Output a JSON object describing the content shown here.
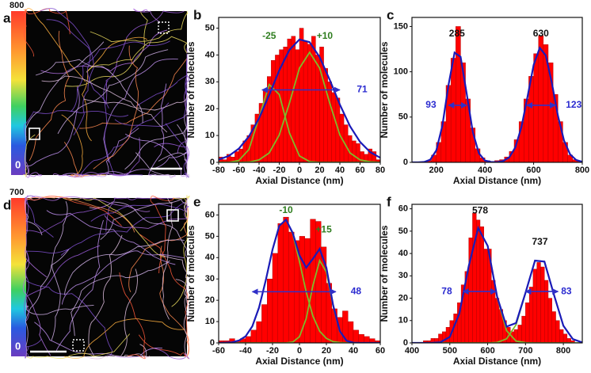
{
  "images": [
    {
      "label": "a",
      "colorbar_max": 800,
      "colorbar_min": 0
    },
    {
      "label": "d",
      "colorbar_max": 700,
      "colorbar_min": 0
    }
  ],
  "chart_data": [
    {
      "type": "histogram",
      "label": "b",
      "x_label": "Axial Distance (nm)",
      "y_label": "Number of molecules",
      "color": "#ff0000",
      "bins": [
        -80,
        -76,
        -72,
        -68,
        -64,
        -60,
        -56,
        -52,
        -48,
        -44,
        -40,
        -36,
        -32,
        -28,
        -24,
        -20,
        -16,
        -12,
        -8,
        -4,
        0,
        4,
        8,
        12,
        16,
        20,
        24,
        28,
        32,
        36,
        40,
        44,
        48,
        52,
        56,
        60,
        64,
        68,
        72,
        76,
        80
      ],
      "values": [
        2,
        1,
        3,
        2,
        4,
        5,
        8,
        10,
        14,
        18,
        22,
        27,
        32,
        38,
        40,
        42,
        43,
        46,
        47,
        42,
        50,
        45,
        44,
        47,
        40,
        43,
        35,
        30,
        26,
        24,
        18,
        14,
        10,
        8,
        7,
        4,
        3,
        5,
        4,
        1
      ],
      "fits": [
        {
          "color": "#1a1ab8",
          "x": [
            -80,
            -70,
            -60,
            -50,
            -40,
            -30,
            -20,
            -10,
            0,
            10,
            20,
            30,
            40,
            50,
            60,
            70,
            80
          ],
          "values": [
            1,
            2.4,
            5.1,
            9.7,
            16.4,
            25.1,
            34.3,
            41.9,
            45.8,
            44.8,
            39.2,
            30.7,
            21.5,
            13.5,
            7.6,
            3.8,
            1.7
          ]
        },
        {
          "color": "#7dbd2a",
          "x": [
            -80,
            -70,
            -60,
            -50,
            -40,
            -30,
            -20,
            -10,
            0,
            10,
            20,
            30,
            40,
            50,
            60,
            70,
            80
          ],
          "values": [
            0,
            0,
            0.7,
            4.8,
            16.7,
            29,
            25.3,
            11,
            2.4,
            0.3,
            0,
            0,
            0,
            0,
            0,
            0,
            0
          ]
        },
        {
          "color": "#7dbd2a",
          "x": [
            -80,
            -70,
            -60,
            -50,
            -40,
            -30,
            -20,
            -10,
            0,
            10,
            20,
            30,
            40,
            50,
            60,
            70,
            80
          ],
          "values": [
            0,
            0,
            0,
            0.1,
            0.9,
            3.5,
            10.2,
            22,
            35.1,
            41,
            35.1,
            22,
            10.2,
            3.5,
            0.9,
            0.2,
            0
          ]
        }
      ],
      "annotations": [
        {
          "text": "-25",
          "color": "#2e7d1e"
        },
        {
          "text": "+10",
          "color": "#2e7d1e"
        },
        {
          "text": "71",
          "color": "#2b2bd0"
        }
      ],
      "xlim": [
        -80,
        80
      ],
      "xticks": [
        -80,
        -60,
        -40,
        -20,
        0,
        20,
        40,
        60,
        80
      ],
      "ylim": [
        0,
        54
      ],
      "yticks": [
        0,
        10,
        20,
        30,
        40,
        50
      ]
    },
    {
      "type": "histogram",
      "label": "c",
      "x_label": "Axial Distance (nm)",
      "y_label": "Number of molecules",
      "color": "#ff0000",
      "bins": [
        100,
        120,
        140,
        160,
        180,
        200,
        220,
        240,
        260,
        280,
        300,
        320,
        340,
        360,
        380,
        400,
        420,
        440,
        460,
        480,
        500,
        520,
        540,
        560,
        580,
        600,
        620,
        640,
        660,
        680,
        700,
        720,
        740,
        760,
        780,
        800
      ],
      "values": [
        0,
        0,
        0,
        2,
        8,
        22,
        45,
        85,
        115,
        150,
        110,
        70,
        38,
        15,
        5,
        2,
        1,
        2,
        3,
        6,
        12,
        25,
        45,
        70,
        95,
        120,
        140,
        130,
        110,
        75,
        45,
        22,
        8,
        3,
        1
      ],
      "fits": [
        {
          "color": "#1a1ab8",
          "x": [
            100,
            125,
            150,
            175,
            200,
            225,
            250,
            275,
            300,
            325,
            350,
            375,
            400,
            425,
            450,
            475,
            500,
            525,
            550,
            575,
            600,
            625,
            650,
            675,
            700,
            725,
            750,
            775,
            800
          ],
          "values": [
            0,
            0,
            0.4,
            2.9,
            13.1,
            40.6,
            85.2,
            121.2,
            116.5,
            75.8,
            33.4,
            10,
            2,
            0.4,
            0.3,
            1.5,
            5.6,
            16.5,
            39,
            72.6,
            107.5,
            126.4,
            118,
            87.5,
            51.3,
            24,
            8.9,
            2.6,
            0.6
          ]
        }
      ],
      "annotations": [
        {
          "text": "285",
          "color": "#111111"
        },
        {
          "text": "630",
          "color": "#111111"
        },
        {
          "text": "93",
          "color": "#2b2bd0"
        },
        {
          "text": "123",
          "color": "#2b2bd0"
        }
      ],
      "xlim": [
        100,
        800
      ],
      "xticks": [
        200,
        400,
        600,
        800
      ],
      "ylim": [
        0,
        160
      ],
      "yticks": [
        0,
        50,
        100,
        150
      ]
    },
    {
      "type": "histogram",
      "label": "e",
      "x_label": "Axial Distance (nm)",
      "y_label": "Number of molecules",
      "color": "#ff0000",
      "bins": [
        -60,
        -56,
        -52,
        -48,
        -44,
        -40,
        -36,
        -32,
        -28,
        -24,
        -20,
        -16,
        -12,
        -8,
        -4,
        0,
        4,
        8,
        12,
        16,
        20,
        24,
        28,
        32,
        36,
        40,
        44,
        48,
        52,
        56,
        60
      ],
      "values": [
        1,
        1,
        2,
        1,
        2,
        3,
        6,
        10,
        18,
        30,
        42,
        56,
        59,
        52,
        48,
        50,
        49,
        58,
        57,
        45,
        28,
        16,
        12,
        15,
        10,
        6,
        4,
        3,
        2,
        1
      ],
      "fits": [
        {
          "color": "#1a1ab8",
          "x": [
            -60,
            -55,
            -50,
            -45,
            -40,
            -35,
            -30,
            -25,
            -20,
            -15,
            -10,
            -5,
            0,
            5,
            10,
            15,
            20,
            25,
            30,
            35,
            40,
            45,
            50,
            55,
            60
          ],
          "values": [
            0,
            0.1,
            0.3,
            1.1,
            3.1,
            7.8,
            16.6,
            29.4,
            43.8,
            54.9,
            57.8,
            51.6,
            41.1,
            35.3,
            39.5,
            44.1,
            35.3,
            17.7,
            5.5,
            1,
            0.1,
            0,
            0,
            0,
            0
          ]
        },
        {
          "color": "#7dbd2a",
          "x": [
            -60,
            -55,
            -50,
            -45,
            -40,
            -35,
            -30,
            -25,
            -20,
            -15,
            -10,
            -5,
            0,
            5,
            10,
            15,
            20,
            25,
            30,
            35,
            40,
            45,
            50,
            55,
            60
          ],
          "values": [
            0,
            0.1,
            0.3,
            1.05,
            3.1,
            7.8,
            16.6,
            29.4,
            43.8,
            54.9,
            57.8,
            51.2,
            38.2,
            23.9,
            12.5,
            5.5,
            2.1,
            0.6,
            0.2,
            0,
            0,
            0,
            0,
            0,
            0
          ]
        },
        {
          "color": "#7dbd2a",
          "x": [
            -60,
            -55,
            -50,
            -45,
            -40,
            -35,
            -30,
            -25,
            -20,
            -15,
            -10,
            -5,
            0,
            5,
            10,
            15,
            20,
            25,
            30,
            35,
            40,
            45,
            50,
            55,
            60
          ],
          "values": [
            0,
            0,
            0,
            0,
            0,
            0,
            0,
            0,
            0,
            0,
            0,
            0.4,
            2.9,
            11.4,
            27,
            38.6,
            33.2,
            17.1,
            5.3,
            1,
            0.1,
            0,
            0,
            0,
            0
          ]
        }
      ],
      "annotations": [
        {
          "text": "-10",
          "color": "#2e7d1e"
        },
        {
          "text": "+15",
          "color": "#2e7d1e"
        },
        {
          "text": "48",
          "color": "#2b2bd0"
        }
      ],
      "xlim": [
        -60,
        60
      ],
      "xticks": [
        -60,
        -40,
        -20,
        0,
        20,
        40,
        60
      ],
      "ylim": [
        0,
        65
      ],
      "yticks": [
        0,
        10,
        20,
        30,
        40,
        50,
        60
      ]
    },
    {
      "type": "histogram",
      "label": "f",
      "x_label": "Axial Distance (nm)",
      "y_label": "Number of molecules",
      "color": "#ff0000",
      "bins": [
        430,
        440,
        450,
        460,
        470,
        480,
        490,
        500,
        510,
        520,
        530,
        540,
        550,
        560,
        570,
        580,
        590,
        600,
        610,
        620,
        630,
        640,
        650,
        660,
        670,
        680,
        690,
        700,
        710,
        720,
        730,
        740,
        750,
        760,
        770,
        780,
        790,
        800,
        810,
        820,
        830
      ],
      "values": [
        1,
        1,
        2,
        2,
        4,
        5,
        7,
        10,
        13,
        18,
        26,
        32,
        47,
        58,
        55,
        52,
        42,
        42,
        28,
        20,
        15,
        10,
        7,
        5,
        6,
        8,
        12,
        18,
        25,
        33,
        36,
        34,
        28,
        20,
        14,
        10,
        6,
        4,
        2,
        1
      ],
      "fits": [
        {
          "color": "#1a1ab8",
          "x": [
            400,
            425,
            450,
            475,
            500,
            525,
            550,
            575,
            600,
            625,
            650,
            675,
            700,
            725,
            750,
            775,
            800,
            825,
            850
          ],
          "values": [
            0,
            0,
            0,
            0.3,
            2.7,
            13,
            34.4,
            51.4,
            43.4,
            20.7,
            7.3,
            8.9,
            22.4,
            36.8,
            36.4,
            21.6,
            7.7,
            1.7,
            0.2
          ]
        },
        {
          "color": "#7dbd2a",
          "x": [
            400,
            425,
            450,
            475,
            500,
            525,
            550,
            575,
            600,
            625,
            650,
            675,
            700,
            725,
            750,
            775,
            800,
            825,
            850
          ],
          "values": [
            0,
            0,
            0,
            0.3,
            2.7,
            13,
            34.4,
            51.4,
            43.4,
            20.5,
            5.5,
            0.8,
            0.1,
            0,
            0,
            0,
            0,
            0,
            0
          ]
        },
        {
          "color": "#7dbd2a",
          "x": [
            400,
            425,
            450,
            475,
            500,
            525,
            550,
            575,
            600,
            625,
            650,
            675,
            700,
            725,
            750,
            775,
            800,
            825,
            850
          ],
          "values": [
            0,
            0,
            0,
            0,
            0,
            0,
            0,
            0,
            0,
            0.2,
            1.8,
            8.1,
            22.3,
            36.8,
            36.4,
            21.6,
            7.7,
            1.7,
            0.2
          ]
        }
      ],
      "annotations": [
        {
          "text": "578",
          "color": "#111111"
        },
        {
          "text": "737",
          "color": "#111111"
        },
        {
          "text": "78",
          "color": "#2b2bd0"
        },
        {
          "text": "83",
          "color": "#2b2bd0"
        }
      ],
      "xlim": [
        400,
        850
      ],
      "xticks": [
        400,
        500,
        600,
        700,
        800
      ],
      "ylim": [
        0,
        62
      ],
      "yticks": [
        0,
        10,
        20,
        30,
        40,
        50,
        60
      ]
    }
  ]
}
